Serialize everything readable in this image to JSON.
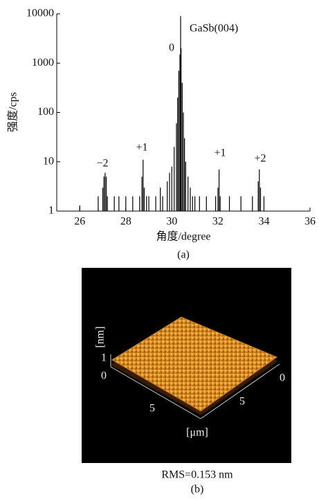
{
  "chart_data": {
    "type": "spectrum",
    "x_label": "角度/degree",
    "y_label": "强度/cps",
    "caption": "(a)",
    "log_y": true,
    "color": "#000000",
    "xlim": [
      25,
      36
    ],
    "xticks": [
      26,
      28,
      30,
      32,
      34,
      36
    ],
    "ylim": [
      1,
      10000
    ],
    "yticks": [
      1,
      10,
      100,
      1000,
      10000
    ],
    "x": [
      26.0,
      26.8,
      27.0,
      27.05,
      27.1,
      27.15,
      27.2,
      27.5,
      27.7,
      28.0,
      28.3,
      28.6,
      28.7,
      28.75,
      28.8,
      28.9,
      29.0,
      29.3,
      29.5,
      29.6,
      29.8,
      29.9,
      30.0,
      30.1,
      30.2,
      30.25,
      30.3,
      30.35,
      30.38,
      30.4,
      30.45,
      30.5,
      30.55,
      30.6,
      30.7,
      30.8,
      30.9,
      31.0,
      31.2,
      31.5,
      31.9,
      32.0,
      32.05,
      32.1,
      32.5,
      33.0,
      33.5,
      33.75,
      33.8,
      33.85,
      34.0
    ],
    "values": [
      1.3,
      2,
      3,
      5,
      6,
      5,
      2,
      2,
      2,
      2,
      2,
      2,
      5,
      11,
      3,
      2,
      2,
      2,
      3,
      2,
      4,
      6,
      8,
      20,
      60,
      200,
      700,
      1500,
      9000,
      2000,
      400,
      100,
      30,
      10,
      5,
      3,
      2,
      2,
      2,
      2,
      2,
      3,
      7,
      2,
      2,
      2,
      2,
      4,
      7,
      3,
      2
    ],
    "annotations": [
      "GaSb(004)",
      "0",
      "−2",
      "+1",
      "+1",
      "+2"
    ]
  },
  "afm_image": {
    "z_unit": "[nm]",
    "z_ticks": [
      "1",
      "0"
    ],
    "x_ticks": [
      "5"
    ],
    "y_ticks": [
      "5",
      "0"
    ],
    "xy_unit": "[μm]",
    "caption": "RMS=0.153 nm",
    "label": "(b)"
  }
}
